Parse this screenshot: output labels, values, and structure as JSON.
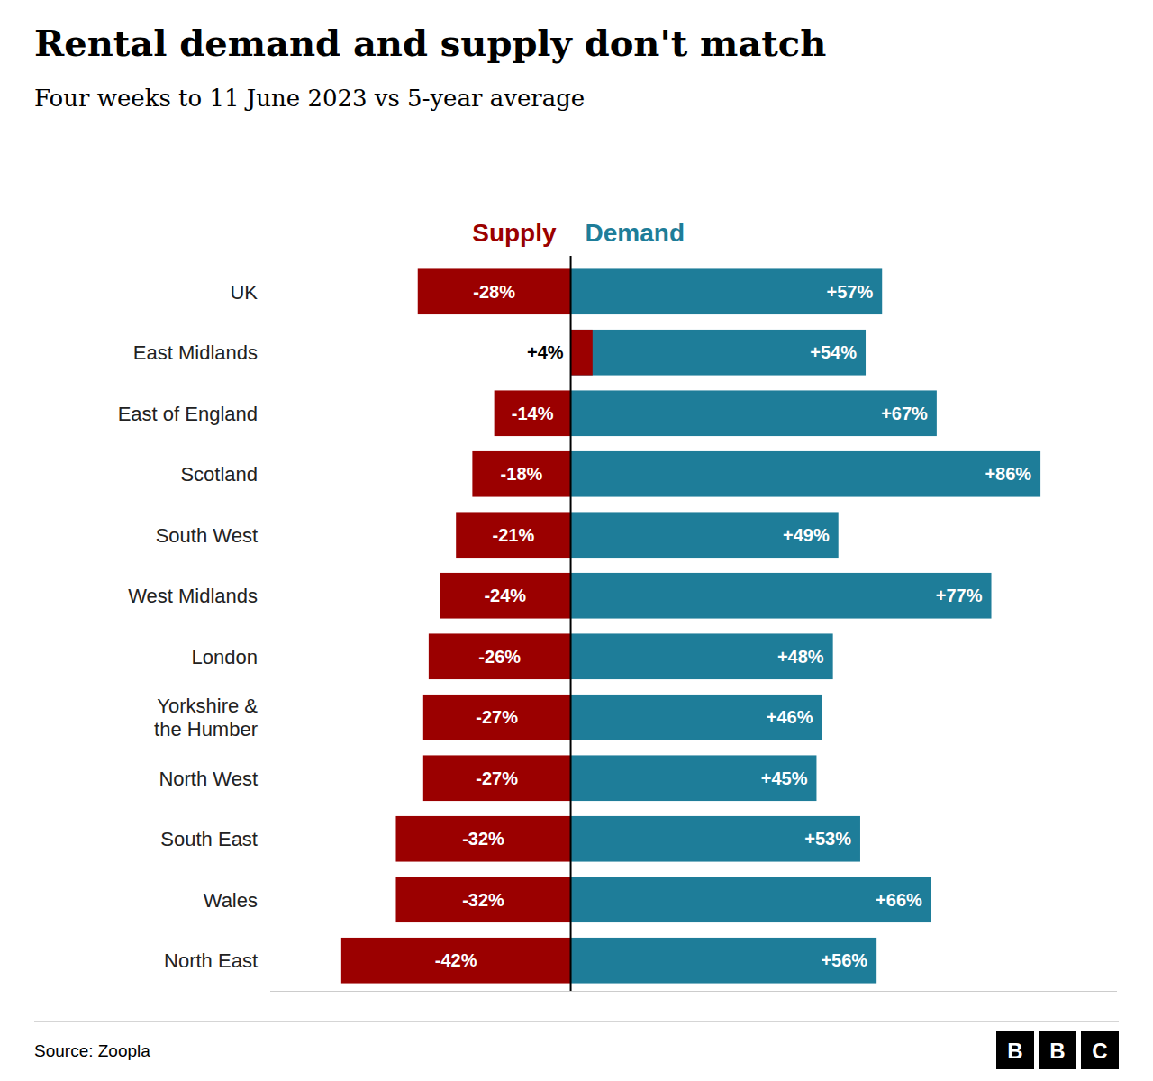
{
  "chart_data": {
    "type": "bar",
    "orientation": "horizontal",
    "title": "Rental demand and supply don't match",
    "subtitle": "Four weeks to 11 June 2023 vs 5-year average",
    "source": "Source: Zoopla",
    "logo": [
      "B",
      "B",
      "C"
    ],
    "categories": [
      "UK",
      "East Midlands",
      "East of England",
      "Scotland",
      "South West",
      "West Midlands",
      "London",
      "Yorkshire &\nthe Humber",
      "North West",
      "South East",
      "Wales",
      "North East"
    ],
    "series": [
      {
        "name": "Supply",
        "color": "#9B0000",
        "values": [
          -28,
          4,
          -14,
          -18,
          -21,
          -24,
          -26,
          -27,
          -27,
          -32,
          -32,
          -42
        ],
        "value_labels": [
          "-28%",
          "+4%",
          "-14%",
          "-18%",
          "-21%",
          "-24%",
          "-26%",
          "-27%",
          "-27%",
          "-32%",
          "-32%",
          "-42%"
        ]
      },
      {
        "name": "Demand",
        "color": "#1E7D99",
        "values": [
          57,
          54,
          67,
          86,
          49,
          77,
          48,
          46,
          45,
          53,
          66,
          56
        ],
        "value_labels": [
          "+57%",
          "+54%",
          "+67%",
          "+86%",
          "+49%",
          "+77%",
          "+48%",
          "+46%",
          "+45%",
          "+53%",
          "+66%",
          "+56%"
        ]
      }
    ],
    "xlim": [
      -55,
      100
    ],
    "data_labels": true,
    "tick_labels": "y",
    "legend": "top",
    "grid": false
  }
}
